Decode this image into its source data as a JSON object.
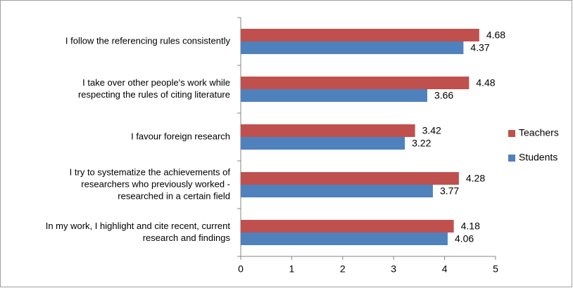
{
  "chart_data": {
    "type": "bar",
    "orientation": "horizontal",
    "categories": [
      [
        "I follow the referencing rules consistently"
      ],
      [
        "I take over other people's work while",
        "respecting the rules of citing literature"
      ],
      [
        "I favour foreign research"
      ],
      [
        "I try to systematize the achievements of",
        "researchers who previously worked -",
        "researched in a certain field"
      ],
      [
        "In my work, I highlight and cite recent, current",
        "research and findings"
      ]
    ],
    "series": [
      {
        "name": "Teachers",
        "color": "#c0504d",
        "values": [
          4.68,
          4.48,
          3.42,
          4.28,
          4.18
        ]
      },
      {
        "name": "Students",
        "color": "#4f81bd",
        "values": [
          4.37,
          3.66,
          3.22,
          3.77,
          4.06
        ]
      }
    ],
    "xlim": [
      0,
      5
    ],
    "xticks": [
      0,
      1,
      2,
      3,
      4,
      5
    ],
    "grid": false,
    "legend": "right"
  }
}
